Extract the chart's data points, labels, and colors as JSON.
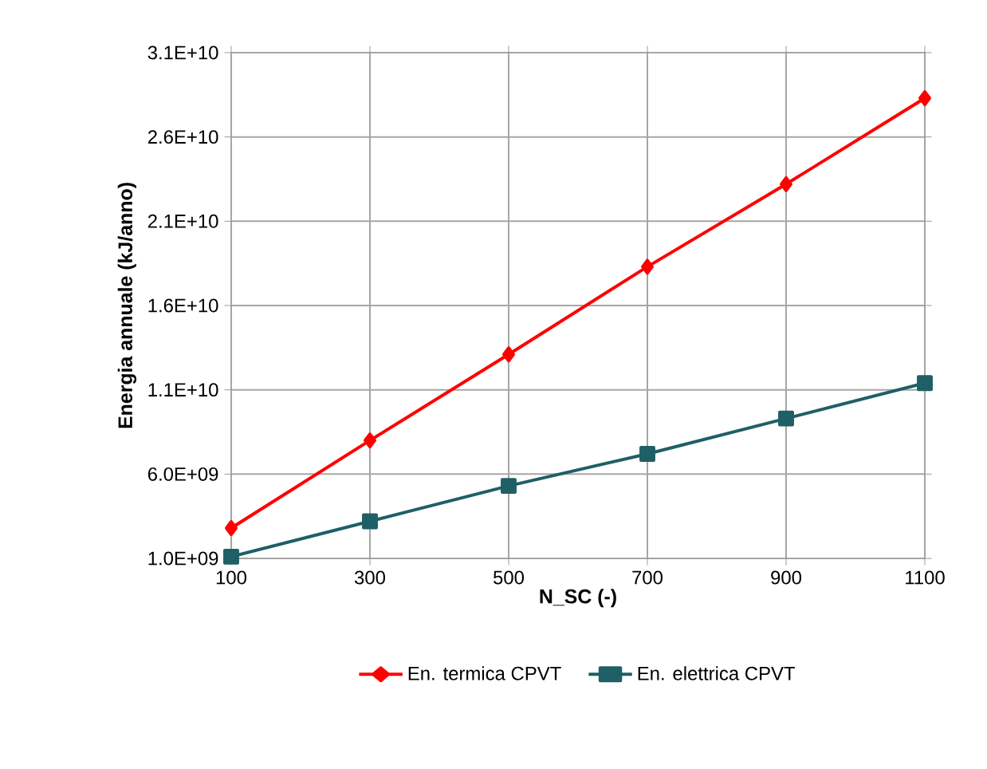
{
  "chart_data": {
    "type": "line",
    "xlabel": "N_SC (-)",
    "ylabel": "Energia annuale (kJ/anno)",
    "x": [
      100,
      300,
      500,
      700,
      900,
      1100
    ],
    "series": [
      {
        "name": "En. termica CPVT",
        "color": "#ff0000",
        "marker": "diamond",
        "values": [
          2800000000,
          8000000000,
          13100000000,
          18300000000,
          23200000000,
          28300000000
        ]
      },
      {
        "name": "En. elettrica CPVT",
        "color": "#1f5f66",
        "marker": "square",
        "values": [
          1100000000,
          3200000000,
          5300000000,
          7200000000,
          9300000000,
          11400000000
        ]
      }
    ],
    "xlim": [
      100,
      1100
    ],
    "xticks": [
      100,
      300,
      500,
      700,
      900,
      1100
    ],
    "ylim": [
      1000000000,
      31000000000
    ],
    "yticks": [
      {
        "value": 1000000000,
        "label": "1.0E+09"
      },
      {
        "value": 6000000000,
        "label": "6.0E+09"
      },
      {
        "value": 11000000000,
        "label": "1.1E+10"
      },
      {
        "value": 16000000000,
        "label": "1.6E+10"
      },
      {
        "value": 21000000000,
        "label": "2.1E+10"
      },
      {
        "value": 26000000000,
        "label": "2.6E+10"
      },
      {
        "value": 31000000000,
        "label": "3.1E+10"
      }
    ],
    "grid": true,
    "legend": "bottom",
    "line_style": "solid"
  }
}
